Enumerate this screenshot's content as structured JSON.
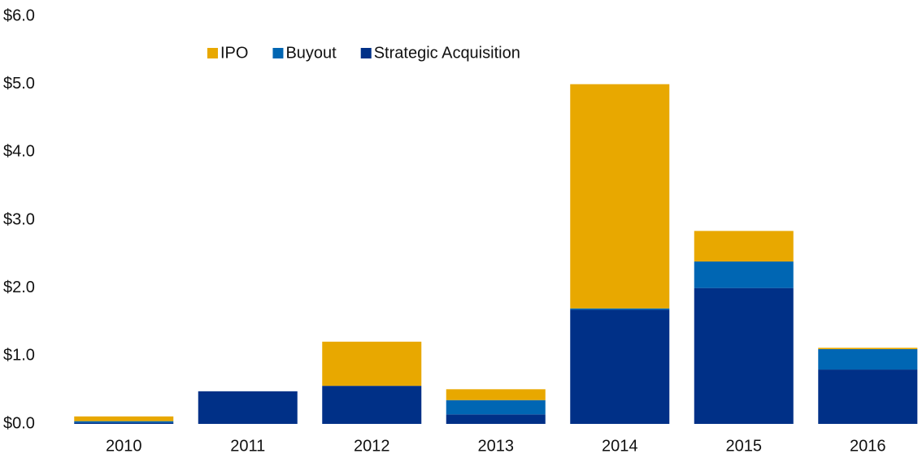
{
  "chart_data": {
    "type": "stacked_bar",
    "categories": [
      "2010",
      "2011",
      "2012",
      "2013",
      "2014",
      "2015",
      "2016"
    ],
    "series": [
      {
        "name": "IPO",
        "color": "#e8a800",
        "values": [
          0.07,
          0,
          0.65,
          0.16,
          3.3,
          0.45,
          0.02
        ]
      },
      {
        "name": "Buyout",
        "color": "#0066b3",
        "values": [
          0.02,
          0,
          0,
          0.21,
          0.02,
          0.39,
          0.3
        ]
      },
      {
        "name": "Strategic Acquisition",
        "color": "#003087",
        "values": [
          0.02,
          0.48,
          0.56,
          0.14,
          1.68,
          2.0,
          0.8
        ]
      }
    ],
    "ylim": [
      0,
      6
    ],
    "yticks": [
      {
        "value": 0,
        "label": "$0.0"
      },
      {
        "value": 1,
        "label": "$1.0"
      },
      {
        "value": 2,
        "label": "$2.0"
      },
      {
        "value": 3,
        "label": "$3.0"
      },
      {
        "value": 4,
        "label": "$4.0"
      },
      {
        "value": 5,
        "label": "$5.0"
      },
      {
        "value": 6,
        "label": "$6.0"
      }
    ],
    "grid": false
  }
}
